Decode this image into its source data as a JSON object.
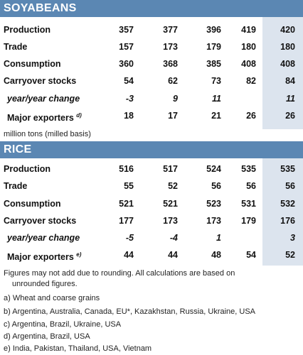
{
  "soybeans": {
    "title": "SOYABEANS",
    "rows": [
      {
        "label": "Production",
        "values": [
          "357",
          "377",
          "396",
          "419",
          "420"
        ]
      },
      {
        "label": "Trade",
        "values": [
          "157",
          "173",
          "179",
          "180",
          "180"
        ]
      },
      {
        "label": "Consumption",
        "values": [
          "360",
          "368",
          "385",
          "408",
          "408"
        ]
      },
      {
        "label": "Carryover stocks",
        "values": [
          "54",
          "62",
          "73",
          "82",
          "84"
        ]
      },
      {
        "label": "year/year change",
        "values": [
          "-3",
          "9",
          "11",
          "",
          "11"
        ]
      },
      {
        "label": "Major exporters",
        "sup": "d)",
        "values": [
          "18",
          "17",
          "21",
          "26",
          "26"
        ]
      }
    ]
  },
  "unit_note": "million tons (milled basis)",
  "rice": {
    "title": "RICE",
    "rows": [
      {
        "label": "Production",
        "values": [
          "516",
          "517",
          "524",
          "535",
          "535"
        ]
      },
      {
        "label": "Trade",
        "values": [
          "55",
          "52",
          "56",
          "56",
          "56"
        ]
      },
      {
        "label": "Consumption",
        "values": [
          "521",
          "521",
          "523",
          "531",
          "532"
        ]
      },
      {
        "label": "Carryover stocks",
        "values": [
          "177",
          "173",
          "173",
          "179",
          "176"
        ]
      },
      {
        "label": "year/year change",
        "values": [
          "-5",
          "-4",
          "1",
          "",
          "3"
        ]
      },
      {
        "label": "Major exporters",
        "sup": "e)",
        "values": [
          "44",
          "44",
          "48",
          "54",
          "52"
        ]
      }
    ]
  },
  "footnotes": {
    "rounding_1": "Figures may not add due to rounding. All calculations are based on",
    "rounding_2": "unrounded figures.",
    "a": "a) Wheat and coarse grains",
    "b": "b) Argentina, Australia, Canada, EU*, Kazakhstan, Russia, Ukraine, USA",
    "c": "c) Argentina, Brazil, Ukraine, USA",
    "d": "d) Argentina, Brazil, USA",
    "e": "e) India, Pakistan, Thailand, USA, Vietnam"
  },
  "colors": {
    "header": "#5b87b3",
    "shade": "#dce4ee"
  }
}
